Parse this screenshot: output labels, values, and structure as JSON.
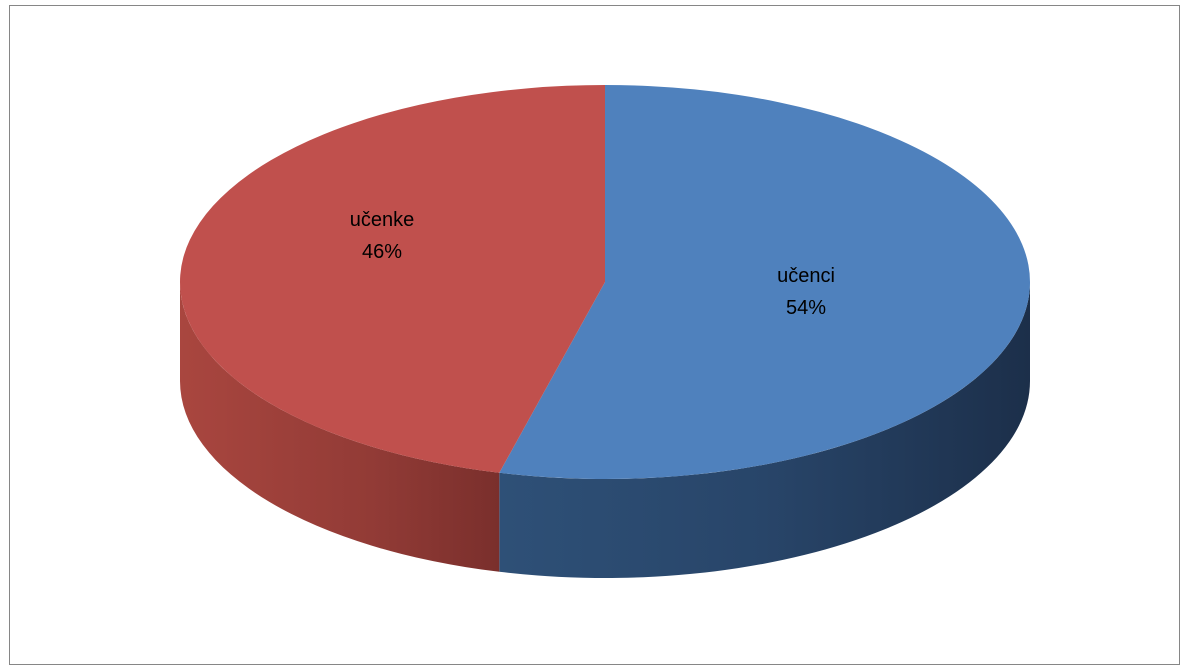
{
  "chart_data": {
    "type": "pie",
    "style": "3d",
    "categories": [
      "učenci",
      "učenke"
    ],
    "values": [
      54,
      46
    ],
    "labels": [
      {
        "name": "učenci",
        "percent": "54%"
      },
      {
        "name": "učenke",
        "percent": "46%"
      }
    ],
    "colors": {
      "učenci": "#4F81BD",
      "učenke": "#C0504D"
    },
    "legend": "none",
    "title": ""
  }
}
